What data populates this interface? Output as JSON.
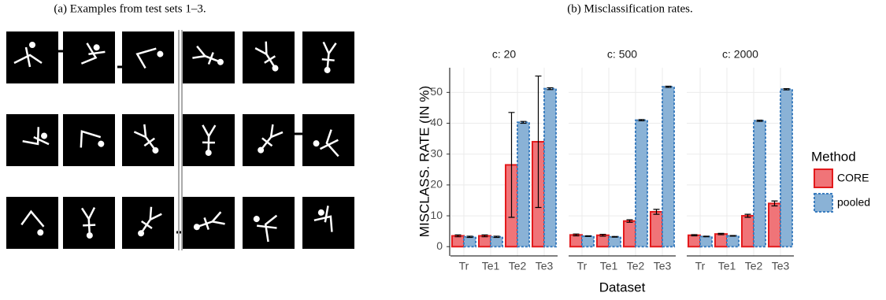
{
  "captions": [
    "(a) Examples from test sets 1–3.",
    "(b) Misclassification rates."
  ],
  "chart_data": [
    {
      "type": "bar",
      "title": "c: 20",
      "y_label": "MISCLASS. RATE (IN %)",
      "x_label": "Dataset",
      "legend_title": "Method",
      "categories": [
        "Tr",
        "Te1",
        "Te2",
        "Te3"
      ],
      "series": [
        {
          "name": "CORE",
          "color": "#f07478",
          "values": [
            3.5,
            3.5,
            26.5,
            34
          ],
          "errors": [
            0.3,
            0.3,
            17,
            21.3
          ]
        },
        {
          "name": "pooled",
          "color": "#8ab2d6",
          "values": [
            3.2,
            3.2,
            40.3,
            51.2
          ],
          "errors": [
            0.2,
            0.2,
            0.3,
            0.3
          ]
        }
      ],
      "ylim": [
        -3,
        58
      ],
      "yticks": [
        0,
        10,
        20,
        30,
        40,
        50
      ],
      "grid": true
    },
    {
      "type": "bar",
      "title": "c: 500",
      "categories": [
        "Tr",
        "Te1",
        "Te2",
        "Te3"
      ],
      "series": [
        {
          "name": "CORE",
          "color": "#f07478",
          "values": [
            3.8,
            3.7,
            8.3,
            11.3
          ],
          "errors": [
            0.3,
            0.3,
            0.4,
            0.8
          ]
        },
        {
          "name": "pooled",
          "color": "#8ab2d6",
          "values": [
            3.4,
            3.2,
            41,
            51.8
          ],
          "errors": [
            0.1,
            0.1,
            0.2,
            0.2
          ]
        }
      ],
      "ylim": [
        -3,
        58
      ],
      "yticks": [
        0,
        10,
        20,
        30,
        40,
        50
      ],
      "grid": true
    },
    {
      "type": "bar",
      "title": "c: 2000",
      "categories": [
        "Tr",
        "Te1",
        "Te2",
        "Te3"
      ],
      "series": [
        {
          "name": "CORE",
          "color": "#f07478",
          "values": [
            3.7,
            4.1,
            10,
            14
          ],
          "errors": [
            0.2,
            0.2,
            0.5,
            0.8
          ]
        },
        {
          "name": "pooled",
          "color": "#8ab2d6",
          "values": [
            3.3,
            3.5,
            40.8,
            51
          ],
          "errors": [
            0.1,
            0.1,
            0.2,
            0.2
          ]
        }
      ],
      "ylim": [
        -3,
        58
      ],
      "yticks": [
        0,
        10,
        20,
        30,
        40,
        50
      ],
      "grid": true
    }
  ]
}
